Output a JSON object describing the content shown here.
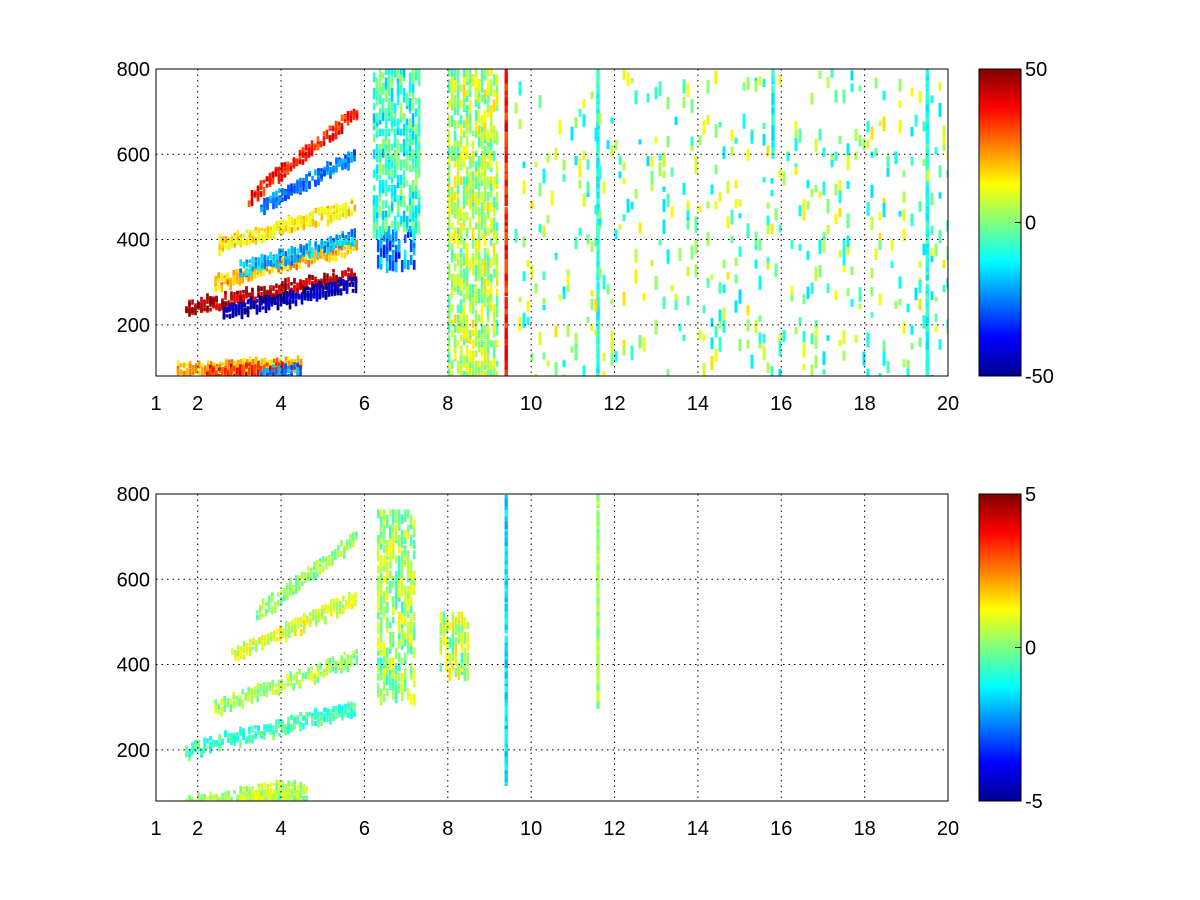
{
  "chart_data": [
    {
      "type": "heatmap",
      "title": "",
      "xlabel": "",
      "ylabel": "",
      "xlim": [
        1,
        20
      ],
      "ylim": [
        80,
        800
      ],
      "x_ticks": [
        1,
        2,
        4,
        6,
        8,
        10,
        12,
        14,
        16,
        18,
        20
      ],
      "y_ticks": [
        200,
        400,
        600,
        800
      ],
      "grid": true,
      "colormap": "jet",
      "colorbar": {
        "range": [
          -50,
          50
        ],
        "ticks": [
          -50,
          0,
          50
        ],
        "placement": "right"
      },
      "features": [
        {
          "kind": "band",
          "x": [
            1.7,
            5.8
          ],
          "y_start": 240,
          "y_end": 320,
          "value": 45
        },
        {
          "kind": "band",
          "x": [
            2.6,
            5.8
          ],
          "y_start": 230,
          "y_end": 300,
          "value": -45
        },
        {
          "kind": "band",
          "x": [
            2.4,
            5.8
          ],
          "y_start": 300,
          "y_end": 390,
          "value": 20
        },
        {
          "kind": "band",
          "x": [
            3.0,
            5.8
          ],
          "y_start": 330,
          "y_end": 410,
          "value": -20
        },
        {
          "kind": "band",
          "x": [
            2.5,
            5.8
          ],
          "y_start": 390,
          "y_end": 480,
          "value": 15
        },
        {
          "kind": "band",
          "x": [
            3.5,
            5.8
          ],
          "y_start": 480,
          "y_end": 600,
          "value": -25
        },
        {
          "kind": "band",
          "x": [
            3.2,
            5.8
          ],
          "y_start": 500,
          "y_end": 700,
          "value": 35
        },
        {
          "kind": "band",
          "x": [
            1.5,
            4.5
          ],
          "y_start": 95,
          "y_end": 110,
          "value": 20
        },
        {
          "kind": "band",
          "x": [
            2.2,
            4.0
          ],
          "y_start": 85,
          "y_end": 95,
          "value": 35
        },
        {
          "kind": "band",
          "x": [
            3.5,
            4.5
          ],
          "y_start": 85,
          "y_end": 92,
          "value": -25
        },
        {
          "kind": "patch",
          "x": [
            6.3,
            7.2
          ],
          "y": [
            340,
            420
          ],
          "value": -25
        },
        {
          "kind": "patch",
          "x": [
            6.2,
            7.3
          ],
          "y": [
            420,
            800
          ],
          "value": -8
        },
        {
          "kind": "patch",
          "x": [
            8.0,
            9.2
          ],
          "y": [
            80,
            800
          ],
          "value": 5
        },
        {
          "kind": "line",
          "x": 9.4,
          "y": [
            80,
            800
          ],
          "value": 35
        },
        {
          "kind": "line",
          "x": 11.6,
          "y": [
            80,
            800
          ],
          "value": -10
        },
        {
          "kind": "line",
          "x": 15.8,
          "y": [
            600,
            800
          ],
          "value": -10
        },
        {
          "kind": "line",
          "x": 19.5,
          "y": [
            80,
            800
          ],
          "value": -10
        },
        {
          "kind": "scatter-noise",
          "x": [
            9.6,
            20.0
          ],
          "y": [
            80,
            800
          ],
          "value": 0
        }
      ]
    },
    {
      "type": "heatmap",
      "title": "",
      "xlabel": "",
      "ylabel": "",
      "xlim": [
        1,
        20
      ],
      "ylim": [
        80,
        800
      ],
      "x_ticks": [
        1,
        2,
        4,
        6,
        8,
        10,
        12,
        14,
        16,
        18,
        20
      ],
      "y_ticks": [
        200,
        400,
        600,
        800
      ],
      "grid": true,
      "colormap": "jet",
      "colorbar": {
        "range": [
          -5,
          5
        ],
        "ticks": [
          -5,
          0,
          5
        ],
        "placement": "right"
      },
      "features": [
        {
          "kind": "band",
          "x": [
            1.7,
            5.8
          ],
          "y_start": 200,
          "y_end": 300,
          "value": -0.6
        },
        {
          "kind": "band",
          "x": [
            2.4,
            5.8
          ],
          "y_start": 300,
          "y_end": 420,
          "value": 0.3
        },
        {
          "kind": "band",
          "x": [
            2.8,
            5.8
          ],
          "y_start": 420,
          "y_end": 560,
          "value": 0.8
        },
        {
          "kind": "band",
          "x": [
            3.4,
            5.8
          ],
          "y_start": 520,
          "y_end": 700,
          "value": 0.2
        },
        {
          "kind": "band",
          "x": [
            1.7,
            4.6
          ],
          "y_start": 80,
          "y_end": 92,
          "value": 0.3
        },
        {
          "kind": "band",
          "x": [
            3.0,
            4.6
          ],
          "y_start": 100,
          "y_end": 115,
          "value": 0.6
        },
        {
          "kind": "patch",
          "x": [
            6.3,
            7.2
          ],
          "y": [
            320,
            760
          ],
          "value": 0.2
        },
        {
          "kind": "patch",
          "x": [
            7.8,
            8.5
          ],
          "y": [
            380,
            520
          ],
          "value": 0.5
        },
        {
          "kind": "line",
          "x": 9.4,
          "y": [
            120,
            800
          ],
          "value": -1.5
        },
        {
          "kind": "line",
          "x": 11.6,
          "y": [
            300,
            800
          ],
          "value": 0.3
        }
      ]
    }
  ]
}
